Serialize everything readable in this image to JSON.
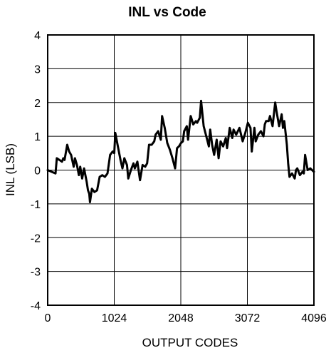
{
  "chart_data": {
    "type": "line",
    "title": "INL vs Code",
    "xlabel": "OUTPUT CODES",
    "ylabel": "INL (LSB)",
    "xlim": [
      0,
      4096
    ],
    "ylim": [
      -4,
      4
    ],
    "xticks": [
      0,
      1024,
      2048,
      3072,
      4096
    ],
    "xtick_labels": [
      "0",
      "1024",
      "2048",
      "3072",
      "4096"
    ],
    "yticks": [
      4,
      3,
      2,
      1,
      0,
      -1,
      -2,
      -3,
      -4
    ],
    "ytick_labels": [
      "4",
      "3",
      "2",
      "1",
      "0",
      "-1",
      "-2",
      "-3",
      "-4"
    ],
    "grid": true,
    "series": [
      {
        "color": "#000000",
        "x": [
          0,
          60,
          120,
          140,
          180,
          220,
          240,
          260,
          300,
          330,
          360,
          400,
          420,
          450,
          480,
          500,
          530,
          560,
          600,
          620,
          640,
          650,
          680,
          720,
          760,
          800,
          840,
          880,
          920,
          960,
          1000,
          1024,
          1040,
          1080,
          1120,
          1150,
          1180,
          1220,
          1240,
          1280,
          1320,
          1340,
          1380,
          1420,
          1460,
          1500,
          1530,
          1560,
          1600,
          1640,
          1660,
          1700,
          1740,
          1760,
          1800,
          1840,
          1880,
          1920,
          1960,
          1990,
          2020,
          2050,
          2080,
          2100,
          2140,
          2160,
          2200,
          2240,
          2280,
          2300,
          2340,
          2360,
          2400,
          2440,
          2480,
          2500,
          2530,
          2560,
          2600,
          2630,
          2660,
          2700,
          2740,
          2760,
          2800,
          2840,
          2860,
          2900,
          2950,
          3000,
          3040,
          3080,
          3120,
          3140,
          3180,
          3200,
          3240,
          3280,
          3320,
          3340,
          3360,
          3400,
          3420,
          3460,
          3500,
          3520,
          3560,
          3600,
          3620,
          3640,
          3680,
          3700,
          3720,
          3760,
          3800,
          3820,
          3840,
          3880,
          3920,
          3940,
          3960,
          4000,
          4040,
          4096
        ],
        "y": [
          0.0,
          -0.05,
          -0.1,
          0.35,
          0.3,
          0.25,
          0.35,
          0.3,
          0.75,
          0.55,
          0.45,
          0.1,
          0.35,
          0.15,
          -0.15,
          0.1,
          -0.25,
          0.05,
          -0.35,
          -0.6,
          -0.7,
          -0.95,
          -0.55,
          -0.65,
          -0.6,
          -0.2,
          -0.15,
          -0.2,
          -0.1,
          0.45,
          0.55,
          0.5,
          1.1,
          0.7,
          0.3,
          0.05,
          0.35,
          0.15,
          -0.25,
          0.0,
          0.2,
          0.05,
          0.25,
          -0.3,
          0.15,
          0.1,
          0.2,
          0.75,
          0.75,
          0.85,
          1.05,
          1.15,
          0.9,
          1.6,
          1.25,
          0.8,
          0.6,
          0.35,
          0.05,
          0.65,
          0.7,
          0.8,
          0.85,
          1.15,
          1.3,
          0.9,
          1.6,
          1.35,
          1.45,
          1.4,
          1.55,
          2.05,
          1.3,
          1.0,
          0.7,
          1.2,
          0.75,
          0.45,
          0.9,
          0.35,
          0.85,
          0.7,
          0.95,
          0.65,
          1.25,
          0.95,
          1.2,
          1.05,
          1.25,
          0.85,
          1.1,
          1.4,
          1.25,
          0.55,
          1.25,
          0.85,
          1.05,
          1.15,
          1.0,
          1.35,
          1.45,
          1.45,
          1.6,
          1.3,
          2.0,
          1.75,
          1.3,
          1.65,
          1.25,
          1.45,
          0.75,
          0.2,
          -0.2,
          -0.1,
          -0.25,
          0.0,
          0.05,
          -0.15,
          -0.05,
          -0.1,
          0.45,
          0.0,
          0.05,
          -0.05
        ]
      }
    ]
  }
}
